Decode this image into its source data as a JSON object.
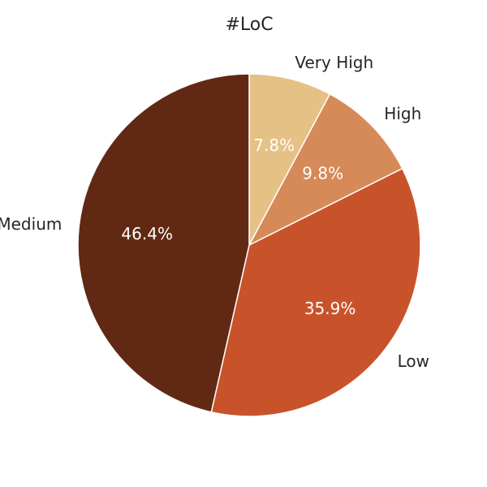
{
  "chart_data": {
    "type": "pie",
    "title": "#LoC",
    "start_angle_deg": 90,
    "direction": "clockwise",
    "slices": [
      {
        "label": "Very High",
        "value": 7.8,
        "pct_label": "7.8%",
        "color": "#E5C185"
      },
      {
        "label": "High",
        "value": 9.8,
        "pct_label": "9.8%",
        "color": "#D68A58"
      },
      {
        "label": "Low",
        "value": 35.9,
        "pct_label": "35.9%",
        "color": "#C8532B"
      },
      {
        "label": "Medium",
        "value": 46.4,
        "pct_label": "46.4%",
        "color": "#612914"
      }
    ]
  }
}
